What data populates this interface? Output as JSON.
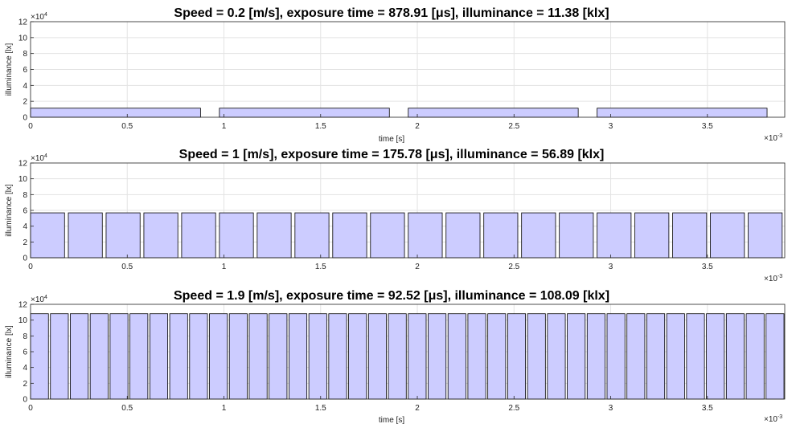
{
  "chart_data": [
    {
      "type": "area",
      "title": "Speed = 0.2 [m/s], exposure time = 878.91 [μs], illuminance = 11.38 [klx]",
      "xlabel": "time [s]",
      "ylabel": "illuminance [lx]",
      "x_exponent_label": "×10",
      "x_exponent_power": "-3",
      "y_exponent_label": "×10",
      "y_exponent_power": "4",
      "xlim": [
        0,
        0.0039
      ],
      "ylim": [
        0,
        120000
      ],
      "x_ticks": [
        0,
        0.5,
        1,
        1.5,
        2,
        2.5,
        3,
        3.5
      ],
      "x_tick_labels": [
        "0",
        "0.5",
        "1",
        "1.5",
        "2",
        "2.5",
        "3",
        "3.5"
      ],
      "y_ticks": [
        0,
        2,
        4,
        6,
        8,
        10,
        12
      ],
      "y_tick_labels": [
        "0",
        "2",
        "4",
        "6",
        "8",
        "10",
        "12"
      ],
      "grid": true,
      "series": [
        {
          "period_s": 0.00097656,
          "pulse_width_s": 0.00087891,
          "amplitude_lx": 11380
        }
      ]
    },
    {
      "type": "area",
      "title": "Speed = 1 [m/s], exposure time = 175.78 [μs], illuminance = 56.89 [klx]",
      "xlabel": "",
      "ylabel": "illuminance [lx]",
      "x_exponent_label": "×10",
      "x_exponent_power": "-3",
      "y_exponent_label": "×10",
      "y_exponent_power": "4",
      "xlim": [
        0,
        0.0039
      ],
      "ylim": [
        0,
        120000
      ],
      "x_ticks": [
        0,
        0.5,
        1,
        1.5,
        2,
        2.5,
        3,
        3.5
      ],
      "x_tick_labels": [
        "0",
        "0.5",
        "1",
        "1.5",
        "2",
        "2.5",
        "3",
        "3.5"
      ],
      "y_ticks": [
        0,
        2,
        4,
        6,
        8,
        10,
        12
      ],
      "y_tick_labels": [
        "0",
        "2",
        "4",
        "6",
        "8",
        "10",
        "12"
      ],
      "grid": true,
      "series": [
        {
          "period_s": 0.000195312,
          "pulse_width_s": 0.00017578,
          "amplitude_lx": 56890
        }
      ]
    },
    {
      "type": "area",
      "title": "Speed = 1.9 [m/s], exposure time = 92.52 [μs], illuminance = 108.09 [klx]",
      "xlabel": "time [s]",
      "ylabel": "illuminance [lx]",
      "x_exponent_label": "×10",
      "x_exponent_power": "-3",
      "y_exponent_label": "×10",
      "y_exponent_power": "4",
      "xlim": [
        0,
        0.0039
      ],
      "ylim": [
        0,
        120000
      ],
      "x_ticks": [
        0,
        0.5,
        1,
        1.5,
        2,
        2.5,
        3,
        3.5
      ],
      "x_tick_labels": [
        "0",
        "0.5",
        "1",
        "1.5",
        "2",
        "2.5",
        "3",
        "3.5"
      ],
      "y_ticks": [
        0,
        2,
        4,
        6,
        8,
        10,
        12
      ],
      "y_tick_labels": [
        "0",
        "2",
        "4",
        "6",
        "8",
        "10",
        "12"
      ],
      "grid": true,
      "series": [
        {
          "period_s": 0.000102796,
          "pulse_width_s": 9.252e-05,
          "amplitude_lx": 108090
        }
      ]
    }
  ],
  "colors": {
    "fill": "#ccccff",
    "stroke": "#000000",
    "grid": "#e3e3e3",
    "axis": "#262626"
  }
}
